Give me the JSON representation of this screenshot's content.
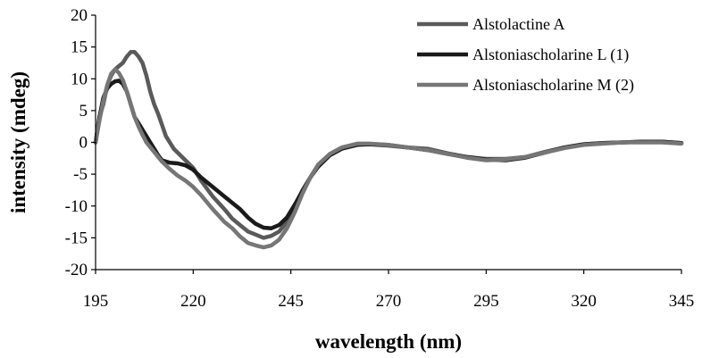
{
  "chart_data": {
    "type": "line",
    "title": "",
    "xlabel": "wavelength (nm)",
    "ylabel": "intensity (mdeg)",
    "xlim": [
      195,
      345
    ],
    "ylim": [
      -20,
      20
    ],
    "x_ticks": [
      195,
      220,
      245,
      270,
      295,
      320,
      345
    ],
    "y_ticks": [
      20,
      15,
      10,
      5,
      0,
      -5,
      -10,
      -15,
      -20
    ],
    "grid": false,
    "legend_position": "top-right",
    "series": [
      {
        "name": "Alstolactine A",
        "color": "#5a5a5a",
        "points": [
          [
            195,
            0
          ],
          [
            196,
            4
          ],
          [
            197,
            6
          ],
          [
            198,
            9
          ],
          [
            199,
            10.5
          ],
          [
            200,
            11.5
          ],
          [
            201,
            12
          ],
          [
            202,
            12.5
          ],
          [
            203,
            13.5
          ],
          [
            204,
            14.2
          ],
          [
            205,
            14.2
          ],
          [
            206,
            13.5
          ],
          [
            207,
            12.5
          ],
          [
            208,
            10.5
          ],
          [
            209,
            8
          ],
          [
            210,
            6
          ],
          [
            211,
            4.5
          ],
          [
            212,
            2.8
          ],
          [
            213,
            1
          ],
          [
            215,
            -1
          ],
          [
            218,
            -2.8
          ],
          [
            220,
            -4
          ],
          [
            222,
            -6
          ],
          [
            225,
            -8.5
          ],
          [
            228,
            -10.5
          ],
          [
            230,
            -12
          ],
          [
            232,
            -13
          ],
          [
            234,
            -14
          ],
          [
            236,
            -14.5
          ],
          [
            238,
            -15
          ],
          [
            240,
            -14.7
          ],
          [
            242,
            -14
          ],
          [
            244,
            -12.5
          ],
          [
            246,
            -10
          ],
          [
            248,
            -7.5
          ],
          [
            250,
            -5.5
          ],
          [
            252,
            -3.5
          ],
          [
            255,
            -2
          ],
          [
            258,
            -1
          ],
          [
            262,
            -0.3
          ],
          [
            265,
            -0.3
          ],
          [
            270,
            -0.5
          ],
          [
            275,
            -0.8
          ],
          [
            280,
            -1
          ],
          [
            285,
            -1.7
          ],
          [
            290,
            -2.3
          ],
          [
            295,
            -2.6
          ],
          [
            300,
            -2.6
          ],
          [
            305,
            -2.3
          ],
          [
            310,
            -1.5
          ],
          [
            315,
            -0.8
          ],
          [
            320,
            -0.3
          ],
          [
            325,
            -0.1
          ],
          [
            330,
            0
          ],
          [
            335,
            0.1
          ],
          [
            340,
            0.1
          ],
          [
            345,
            -0.1
          ]
        ]
      },
      {
        "name": "Alstoniascholarine L (1)",
        "color": "#1a1a1a",
        "points": [
          [
            195,
            0
          ],
          [
            196,
            4
          ],
          [
            197,
            7
          ],
          [
            198,
            8.5
          ],
          [
            199,
            9.2
          ],
          [
            200,
            9.6
          ],
          [
            201,
            9.7
          ],
          [
            202,
            9.2
          ],
          [
            203,
            8
          ],
          [
            204,
            6
          ],
          [
            205,
            4
          ],
          [
            206,
            3
          ],
          [
            207,
            2
          ],
          [
            208,
            1
          ],
          [
            209,
            0
          ],
          [
            210,
            -1
          ],
          [
            211,
            -2
          ],
          [
            212,
            -2.8
          ],
          [
            214,
            -3.2
          ],
          [
            216,
            -3.3
          ],
          [
            218,
            -3.6
          ],
          [
            220,
            -4.3
          ],
          [
            222,
            -5.5
          ],
          [
            225,
            -7
          ],
          [
            228,
            -8.5
          ],
          [
            230,
            -9.5
          ],
          [
            232,
            -10.5
          ],
          [
            234,
            -11.8
          ],
          [
            236,
            -12.8
          ],
          [
            238,
            -13.4
          ],
          [
            240,
            -13.5
          ],
          [
            242,
            -13
          ],
          [
            244,
            -11.8
          ],
          [
            246,
            -9.8
          ],
          [
            248,
            -7.6
          ],
          [
            250,
            -5.5
          ],
          [
            252,
            -3.8
          ],
          [
            255,
            -2
          ],
          [
            258,
            -1
          ],
          [
            262,
            -0.4
          ],
          [
            265,
            -0.3
          ],
          [
            270,
            -0.4
          ],
          [
            275,
            -0.8
          ],
          [
            280,
            -1.2
          ],
          [
            285,
            -1.8
          ],
          [
            290,
            -2.3
          ],
          [
            295,
            -2.7
          ],
          [
            300,
            -2.8
          ],
          [
            305,
            -2.4
          ],
          [
            310,
            -1.6
          ],
          [
            315,
            -0.8
          ],
          [
            320,
            -0.3
          ],
          [
            325,
            -0.1
          ],
          [
            330,
            0
          ],
          [
            335,
            0.1
          ],
          [
            340,
            0.1
          ],
          [
            345,
            -0.1
          ]
        ]
      },
      {
        "name": "Alstoniascholarine M (2)",
        "color": "#767676",
        "points": [
          [
            195,
            0
          ],
          [
            196,
            3.5
          ],
          [
            197,
            6.5
          ],
          [
            198,
            9
          ],
          [
            199,
            10.8
          ],
          [
            200,
            11.5
          ],
          [
            201,
            10.9
          ],
          [
            202,
            9.8
          ],
          [
            203,
            8
          ],
          [
            204,
            6
          ],
          [
            205,
            4
          ],
          [
            206,
            2.5
          ],
          [
            207,
            1.2
          ],
          [
            208,
            0
          ],
          [
            210,
            -1.5
          ],
          [
            212,
            -3
          ],
          [
            214,
            -4.2
          ],
          [
            216,
            -5.2
          ],
          [
            218,
            -6
          ],
          [
            220,
            -7
          ],
          [
            222,
            -8.3
          ],
          [
            225,
            -10.5
          ],
          [
            228,
            -12.5
          ],
          [
            230,
            -13.5
          ],
          [
            232,
            -14.8
          ],
          [
            234,
            -15.8
          ],
          [
            236,
            -16.2
          ],
          [
            238,
            -16.5
          ],
          [
            240,
            -16.2
          ],
          [
            242,
            -15.3
          ],
          [
            244,
            -13.5
          ],
          [
            246,
            -11
          ],
          [
            248,
            -8
          ],
          [
            250,
            -5.5
          ],
          [
            252,
            -3.5
          ],
          [
            255,
            -1.8
          ],
          [
            258,
            -0.8
          ],
          [
            262,
            -0.2
          ],
          [
            265,
            -0.2
          ],
          [
            270,
            -0.4
          ],
          [
            275,
            -0.8
          ],
          [
            280,
            -1.2
          ],
          [
            285,
            -1.8
          ],
          [
            290,
            -2.4
          ],
          [
            295,
            -2.8
          ],
          [
            300,
            -2.7
          ],
          [
            305,
            -2.3
          ],
          [
            310,
            -1.6
          ],
          [
            315,
            -0.9
          ],
          [
            320,
            -0.4
          ],
          [
            325,
            -0.2
          ],
          [
            330,
            0
          ],
          [
            335,
            0
          ],
          [
            340,
            0
          ],
          [
            345,
            -0.2
          ]
        ]
      }
    ]
  }
}
